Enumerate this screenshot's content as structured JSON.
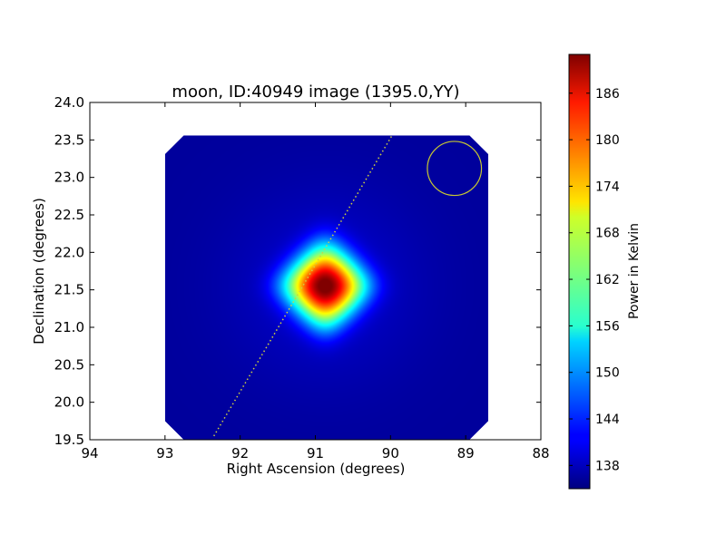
{
  "chart_data": {
    "type": "heatmap",
    "title": "moon, ID:40949 image (1395.0,YY)",
    "xlabel": "Right Ascension (degrees)",
    "ylabel": "Declination (degrees)",
    "xlim": [
      94,
      88
    ],
    "ylim": [
      19.5,
      24.0
    ],
    "xticks": [
      "94",
      "93",
      "92",
      "91",
      "90",
      "89",
      "88"
    ],
    "xtick_values": [
      94,
      93,
      92,
      91,
      90,
      89,
      88
    ],
    "yticks": [
      "19.5",
      "20.0",
      "20.5",
      "21.0",
      "21.5",
      "22.0",
      "22.5",
      "23.0",
      "23.5",
      "24.0"
    ],
    "ytick_values": [
      19.5,
      20.0,
      20.5,
      21.0,
      21.5,
      22.0,
      22.5,
      23.0,
      23.5,
      24.0
    ],
    "image_extent": {
      "ra_min": 88.7,
      "ra_max": 93.0,
      "dec_min": 19.5,
      "dec_max": 23.56
    },
    "image_corner_cut_deg": 0.25,
    "source_peak": {
      "ra": 90.87,
      "dec": 21.55,
      "value": 190
    },
    "background_value": 136,
    "source_arm_halfwidth_deg": 0.5,
    "source_core_sigma_deg": 0.33,
    "beam_circle": {
      "ra": 89.15,
      "dec": 23.12,
      "radius_deg": 0.36,
      "color": "#c8c832"
    },
    "dotted_track": {
      "start": [
        92.35,
        19.55
      ],
      "end": [
        89.98,
        23.56
      ],
      "color": "#d0d040"
    },
    "colorbar": {
      "label": "Power in Kelvin",
      "vmin": 135,
      "vmax": 191,
      "ticks": [
        "138",
        "144",
        "150",
        "156",
        "162",
        "168",
        "174",
        "180",
        "186"
      ],
      "tick_values": [
        138,
        144,
        150,
        156,
        162,
        168,
        174,
        180,
        186
      ],
      "colormap": "jet"
    },
    "grid": false,
    "legend": "none"
  }
}
